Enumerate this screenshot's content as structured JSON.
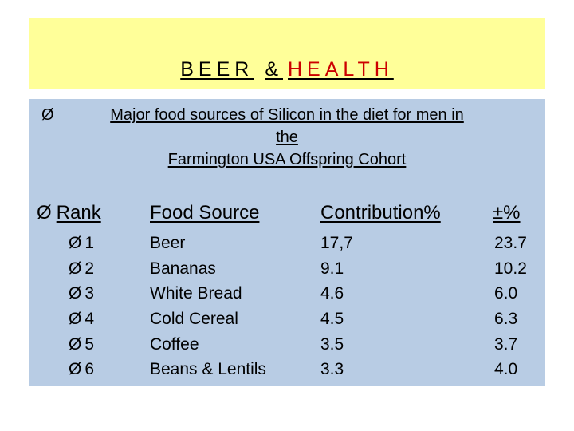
{
  "title": {
    "part1": "BEER",
    "part2": "&",
    "part3": "HEALTH"
  },
  "subtitle": {
    "bullet": "Ø",
    "line1": "Major food sources of Silicon in the diet for men in",
    "line2": "the",
    "line3": "Farmington USA Offspring Cohort"
  },
  "table": {
    "headers": {
      "rank": "Rank",
      "food": "Food Source",
      "contribution": "Contribution%",
      "pm": "±%"
    },
    "rows": [
      {
        "rank": "1",
        "food": "Beer",
        "contribution": "17,7",
        "pm": "23.7"
      },
      {
        "rank": "2",
        "food": "Bananas",
        "contribution": "9.1",
        "pm": "10.2"
      },
      {
        "rank": "3",
        "food": "White Bread",
        "contribution": "4.6",
        "pm": "6.0"
      },
      {
        "rank": "4",
        "food": "Cold Cereal",
        "contribution": "4.5",
        "pm": "6.3"
      },
      {
        "rank": "5",
        "food": "Coffee",
        "contribution": "3.5",
        "pm": "3.7"
      },
      {
        "rank": "6",
        "food": "Beans & Lentils",
        "contribution": "3.3",
        "pm": "4.0"
      }
    ]
  }
}
